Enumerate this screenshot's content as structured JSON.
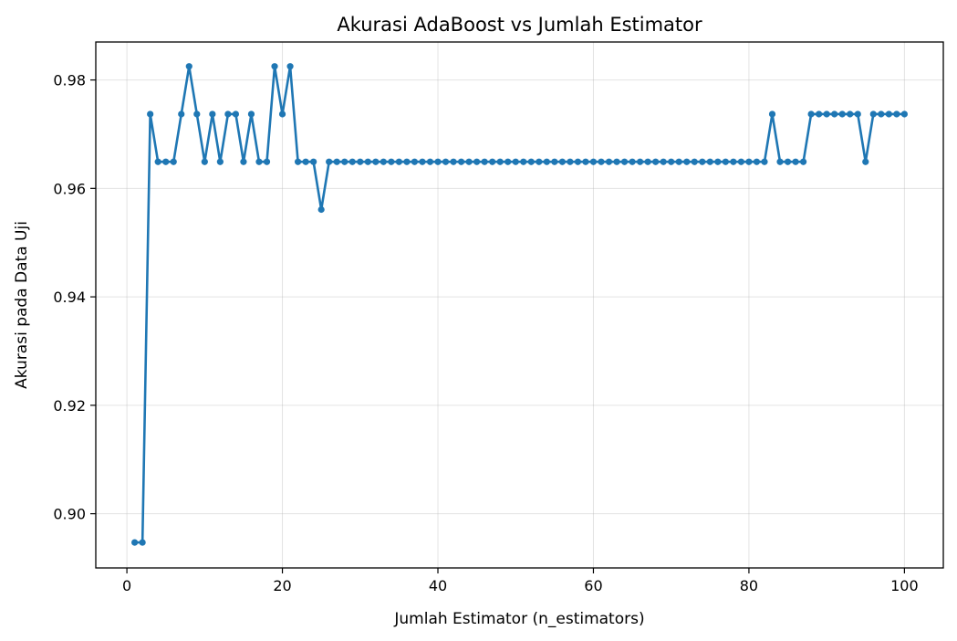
{
  "chart_data": {
    "type": "line",
    "title": "Akurasi AdaBoost vs Jumlah Estimator",
    "xlabel": "Jumlah Estimator (n_estimators)",
    "ylabel": "Akurasi pada Data Uji",
    "xlim": [
      -4,
      105
    ],
    "ylim": [
      0.89,
      0.987
    ],
    "xticks": [
      0,
      20,
      40,
      60,
      80,
      100
    ],
    "xtick_labels": [
      "0",
      "20",
      "40",
      "60",
      "80",
      "100"
    ],
    "yticks": [
      0.9,
      0.92,
      0.94,
      0.96,
      0.98
    ],
    "ytick_labels": [
      "0.90",
      "0.92",
      "0.94",
      "0.96",
      "0.98"
    ],
    "grid": true,
    "color": "#1f77b4",
    "series": [
      {
        "x": [
          1,
          2,
          3,
          4,
          5,
          6,
          7,
          8,
          9,
          10,
          11,
          12,
          13,
          14,
          15,
          16,
          17,
          18,
          19,
          20,
          21,
          22,
          23,
          24,
          25,
          26,
          27,
          28,
          29,
          30,
          31,
          32,
          33,
          34,
          35,
          36,
          37,
          38,
          39,
          40,
          41,
          42,
          43,
          44,
          45,
          46,
          47,
          48,
          49,
          50,
          51,
          52,
          53,
          54,
          55,
          56,
          57,
          58,
          59,
          60,
          61,
          62,
          63,
          64,
          65,
          66,
          67,
          68,
          69,
          70,
          71,
          72,
          73,
          74,
          75,
          76,
          77,
          78,
          79,
          80,
          81,
          82,
          83,
          84,
          85,
          86,
          87,
          88,
          89,
          90,
          91,
          92,
          93,
          94,
          95,
          96,
          97,
          98,
          99,
          100
        ],
        "values": [
          0.8947,
          0.8947,
          0.9737,
          0.9649,
          0.9649,
          0.9649,
          0.9737,
          0.9825,
          0.9737,
          0.9649,
          0.9737,
          0.9649,
          0.9737,
          0.9737,
          0.9649,
          0.9737,
          0.9649,
          0.9649,
          0.9825,
          0.9737,
          0.9825,
          0.9649,
          0.9649,
          0.9649,
          0.9561,
          0.9649,
          0.9649,
          0.9649,
          0.9649,
          0.9649,
          0.9649,
          0.9649,
          0.9649,
          0.9649,
          0.9649,
          0.9649,
          0.9649,
          0.9649,
          0.9649,
          0.9649,
          0.9649,
          0.9649,
          0.9649,
          0.9649,
          0.9649,
          0.9649,
          0.9649,
          0.9649,
          0.9649,
          0.9649,
          0.9649,
          0.9649,
          0.9649,
          0.9649,
          0.9649,
          0.9649,
          0.9649,
          0.9649,
          0.9649,
          0.9649,
          0.9649,
          0.9649,
          0.9649,
          0.9649,
          0.9649,
          0.9649,
          0.9649,
          0.9649,
          0.9649,
          0.9649,
          0.9649,
          0.9649,
          0.9649,
          0.9649,
          0.9649,
          0.9649,
          0.9649,
          0.9649,
          0.9649,
          0.9649,
          0.9649,
          0.9649,
          0.9737,
          0.9649,
          0.9649,
          0.9649,
          0.9649,
          0.9737,
          0.9737,
          0.9737,
          0.9737,
          0.9737,
          0.9737,
          0.9737,
          0.9649,
          0.9737,
          0.9737,
          0.9737,
          0.9737,
          0.9737
        ]
      }
    ]
  }
}
